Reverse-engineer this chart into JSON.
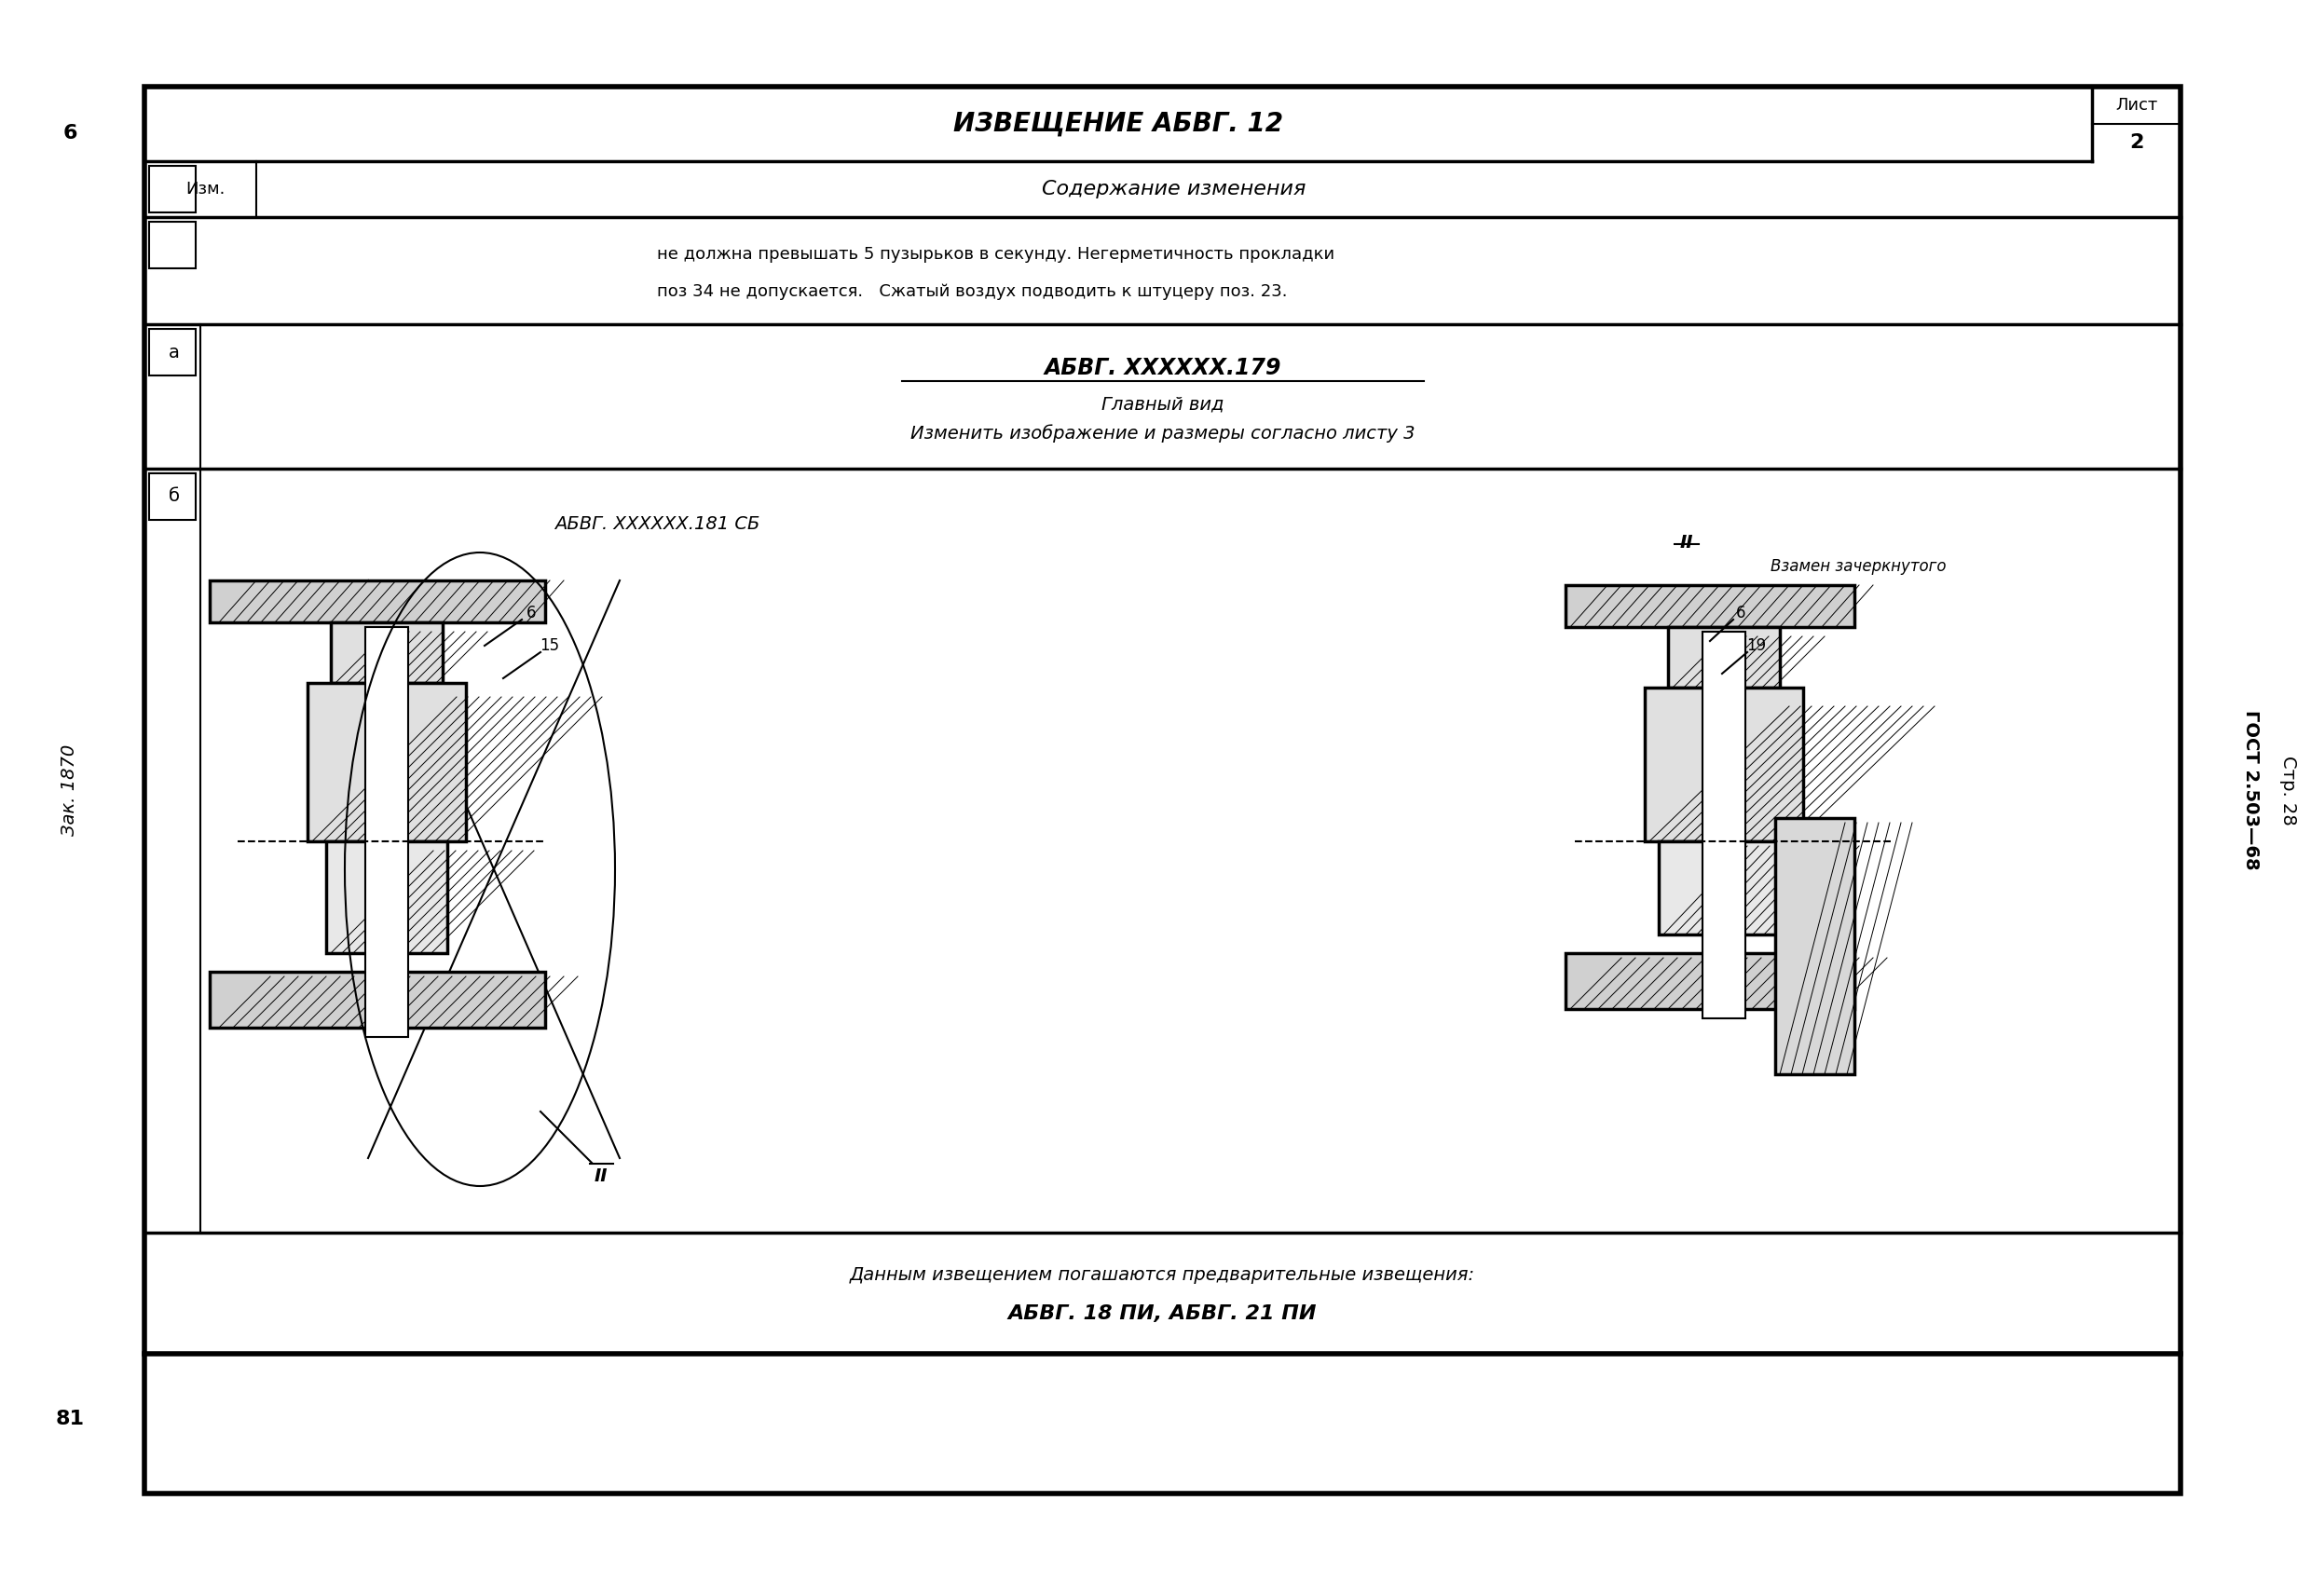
{
  "bg_color": "#ffffff",
  "line_color": "#000000",
  "title_text": "ИЗВЕЩЕНИЕ АБВГ. 12",
  "list_label": "Лист",
  "list_num": "2",
  "izm_label": "Изм.",
  "content_label": "Содержание изменения",
  "text_row1": "не должна превышать 5 пузырьков в секунду. Негерметичность прокладки",
  "text_row2": "поз 34 не допускается.   Сжатый воздух подводить к штуцеру поз. 23.",
  "section_a_label": "а",
  "doc_ref1": "АБВГ. XXXXXX.179",
  "doc_ref1_sub1": "Главный вид",
  "doc_ref1_sub2": "Изменить изображение и размеры согласно листу 3",
  "section_b_label": "б",
  "doc_ref2": "АБВГ. XXXXXX.181 СБ",
  "section_II_label": "II",
  "vzamen_label": "Взамен зачеркнутого",
  "bottom_text1": "Данным извещением погашаются предварительные извещения:",
  "bottom_text2": "АБВГ. 18 ПИ, АБВГ. 21 ПИ",
  "left_margin_top": "6",
  "left_margin_zak": "Зак. 1870",
  "right_margin_gost": "ГОСТ 2.503—68",
  "right_margin_str": "Стр. 28",
  "bottom_left_num": "81",
  "label_6_left": "6",
  "label_15": "15",
  "label_II_bottom": "II",
  "label_6_right": "6",
  "label_19": "19"
}
